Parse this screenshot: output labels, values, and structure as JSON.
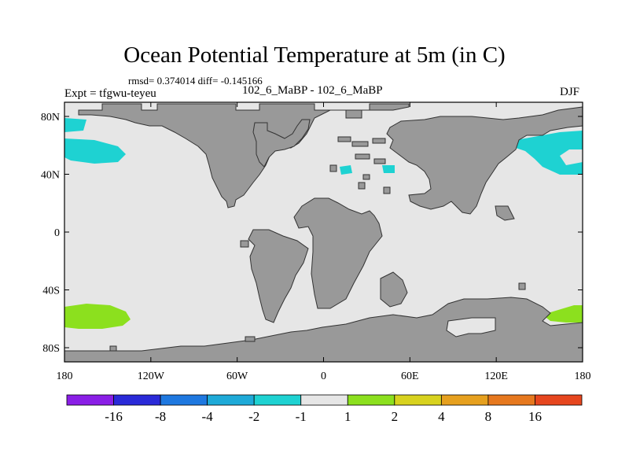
{
  "title": "Ocean Potential Temperature at 5m (in C)",
  "stats_line": "rmsd= 0.374014 diff= -0.145166",
  "experiment_label": "Expt = tfgwu-teyeu",
  "runs_label": "102_6_MaBP - 102_6_MaBP",
  "season_label": "DJF",
  "lat_ticks": [
    {
      "label": "80N",
      "lat": 80
    },
    {
      "label": "40N",
      "lat": 40
    },
    {
      "label": "0",
      "lat": 0
    },
    {
      "label": "40S",
      "lat": -40
    },
    {
      "label": "80S",
      "lat": -80
    }
  ],
  "lon_ticks": [
    {
      "label": "180",
      "lon": -180
    },
    {
      "label": "120W",
      "lon": -120
    },
    {
      "label": "60W",
      "lon": -60
    },
    {
      "label": "0",
      "lon": 0
    },
    {
      "label": "60E",
      "lon": 60
    },
    {
      "label": "120E",
      "lon": 120
    },
    {
      "label": "180",
      "lon": 180
    }
  ],
  "colorbar": {
    "colors": [
      "#8a1ee6",
      "#2a2ad8",
      "#1e78e0",
      "#1eaad8",
      "#1ed2d2",
      "#e6e6e6",
      "#8ce01e",
      "#d8d21e",
      "#e6a01e",
      "#e6781e",
      "#e6461e"
    ],
    "labels": [
      "-16",
      "-8",
      "-4",
      "-2",
      "-1",
      "1",
      "2",
      "4",
      "8",
      "16"
    ]
  },
  "colors": {
    "ocean": "#e6e6e6",
    "land": "#999999"
  }
}
